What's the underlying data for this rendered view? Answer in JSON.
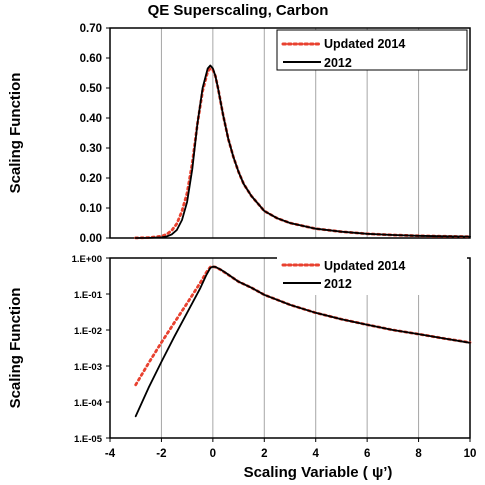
{
  "title": "QE Superscaling, Carbon",
  "xlabel": "Scaling Variable   ( ψ’)",
  "colors": {
    "updated": "#e8412f",
    "old": "#000000",
    "grid": "#a6a6a6",
    "frame": "#000000"
  },
  "chart_data": [
    {
      "type": "line",
      "scale": "linear",
      "ylabel": "Scaling Function",
      "xlim": [
        -4,
        10
      ],
      "ylim": [
        0,
        0.7
      ],
      "yticks": [
        "0.00",
        "0.10",
        "0.20",
        "0.30",
        "0.40",
        "0.50",
        "0.60",
        "0.70"
      ],
      "ytick_values": [
        0,
        0.1,
        0.2,
        0.3,
        0.4,
        0.5,
        0.6,
        0.7
      ],
      "grid": "vertical",
      "legend": "top-right",
      "series": [
        {
          "name": "Updated 2014",
          "style": "dotted",
          "x": [
            -3,
            -2.5,
            -2,
            -1.8,
            -1.6,
            -1.4,
            -1.2,
            -1.0,
            -0.8,
            -0.6,
            -0.4,
            -0.2,
            -0.1,
            0,
            0.1,
            0.2,
            0.4,
            0.6,
            0.8,
            1.0,
            1.2,
            1.5,
            2,
            2.5,
            3,
            4,
            5,
            6,
            7,
            8,
            9,
            10
          ],
          "y": [
            0.0003,
            0.0015,
            0.006,
            0.012,
            0.025,
            0.048,
            0.09,
            0.15,
            0.25,
            0.38,
            0.49,
            0.555,
            0.565,
            0.56,
            0.54,
            0.5,
            0.41,
            0.33,
            0.27,
            0.22,
            0.18,
            0.14,
            0.09,
            0.066,
            0.05,
            0.031,
            0.021,
            0.014,
            0.01,
            0.0075,
            0.0058,
            0.0045
          ]
        },
        {
          "name": "2012",
          "style": "solid",
          "x": [
            -3,
            -2.5,
            -2,
            -1.8,
            -1.6,
            -1.4,
            -1.2,
            -1.0,
            -0.8,
            -0.6,
            -0.4,
            -0.2,
            -0.1,
            0,
            0.1,
            0.2,
            0.4,
            0.6,
            0.8,
            1.0,
            1.2,
            1.5,
            2,
            2.5,
            3,
            4,
            5,
            6,
            7,
            8,
            9,
            10
          ],
          "y": [
            4e-05,
            0.0004,
            0.002,
            0.005,
            0.012,
            0.027,
            0.06,
            0.12,
            0.23,
            0.38,
            0.5,
            0.565,
            0.575,
            0.565,
            0.54,
            0.5,
            0.41,
            0.33,
            0.27,
            0.22,
            0.18,
            0.14,
            0.09,
            0.066,
            0.05,
            0.031,
            0.021,
            0.014,
            0.01,
            0.0075,
            0.0058,
            0.0044
          ]
        }
      ]
    },
    {
      "type": "line",
      "scale": "log",
      "ylabel": "Scaling Function",
      "xlabel": "Scaling Variable   ( ψ’)",
      "xlim": [
        -4,
        10
      ],
      "xticks": [
        "-4",
        "-2",
        "0",
        "2",
        "4",
        "6",
        "8",
        "10"
      ],
      "xtick_values": [
        -4,
        -2,
        0,
        2,
        4,
        6,
        8,
        10
      ],
      "ylim": [
        1e-05,
        1
      ],
      "yticks": [
        "1.E-05",
        "1.E-04",
        "1.E-03",
        "1.E-02",
        "1.E-01",
        "1.E+00"
      ],
      "ytick_values": [
        1e-05,
        0.0001,
        0.001,
        0.01,
        0.1,
        1
      ],
      "grid": "vertical",
      "legend": "top-right",
      "series": [
        {
          "name": "Updated 2014",
          "style": "dotted",
          "x": [
            -3,
            -2.5,
            -2,
            -1.5,
            -1.0,
            -0.5,
            -0.25,
            -0.1,
            0,
            0.1,
            0.3,
            0.5,
            1.0,
            1.5,
            2,
            3,
            4,
            5,
            6,
            7,
            8,
            9,
            10
          ],
          "y": [
            0.0003,
            0.0012,
            0.0045,
            0.016,
            0.055,
            0.2,
            0.4,
            0.56,
            0.57,
            0.56,
            0.47,
            0.38,
            0.22,
            0.15,
            0.095,
            0.05,
            0.03,
            0.02,
            0.014,
            0.01,
            0.0077,
            0.0058,
            0.0045
          ]
        },
        {
          "name": "2012",
          "style": "solid",
          "x": [
            -3,
            -2.5,
            -2,
            -1.5,
            -1.0,
            -0.5,
            -0.25,
            -0.1,
            0,
            0.1,
            0.3,
            0.5,
            1.0,
            1.5,
            2,
            3,
            4,
            5,
            6,
            7,
            8,
            9,
            10
          ],
          "y": [
            4e-05,
            0.00025,
            0.0013,
            0.0065,
            0.03,
            0.14,
            0.34,
            0.53,
            0.575,
            0.565,
            0.48,
            0.39,
            0.22,
            0.15,
            0.095,
            0.05,
            0.03,
            0.02,
            0.014,
            0.01,
            0.0077,
            0.0058,
            0.0044
          ]
        }
      ]
    }
  ]
}
